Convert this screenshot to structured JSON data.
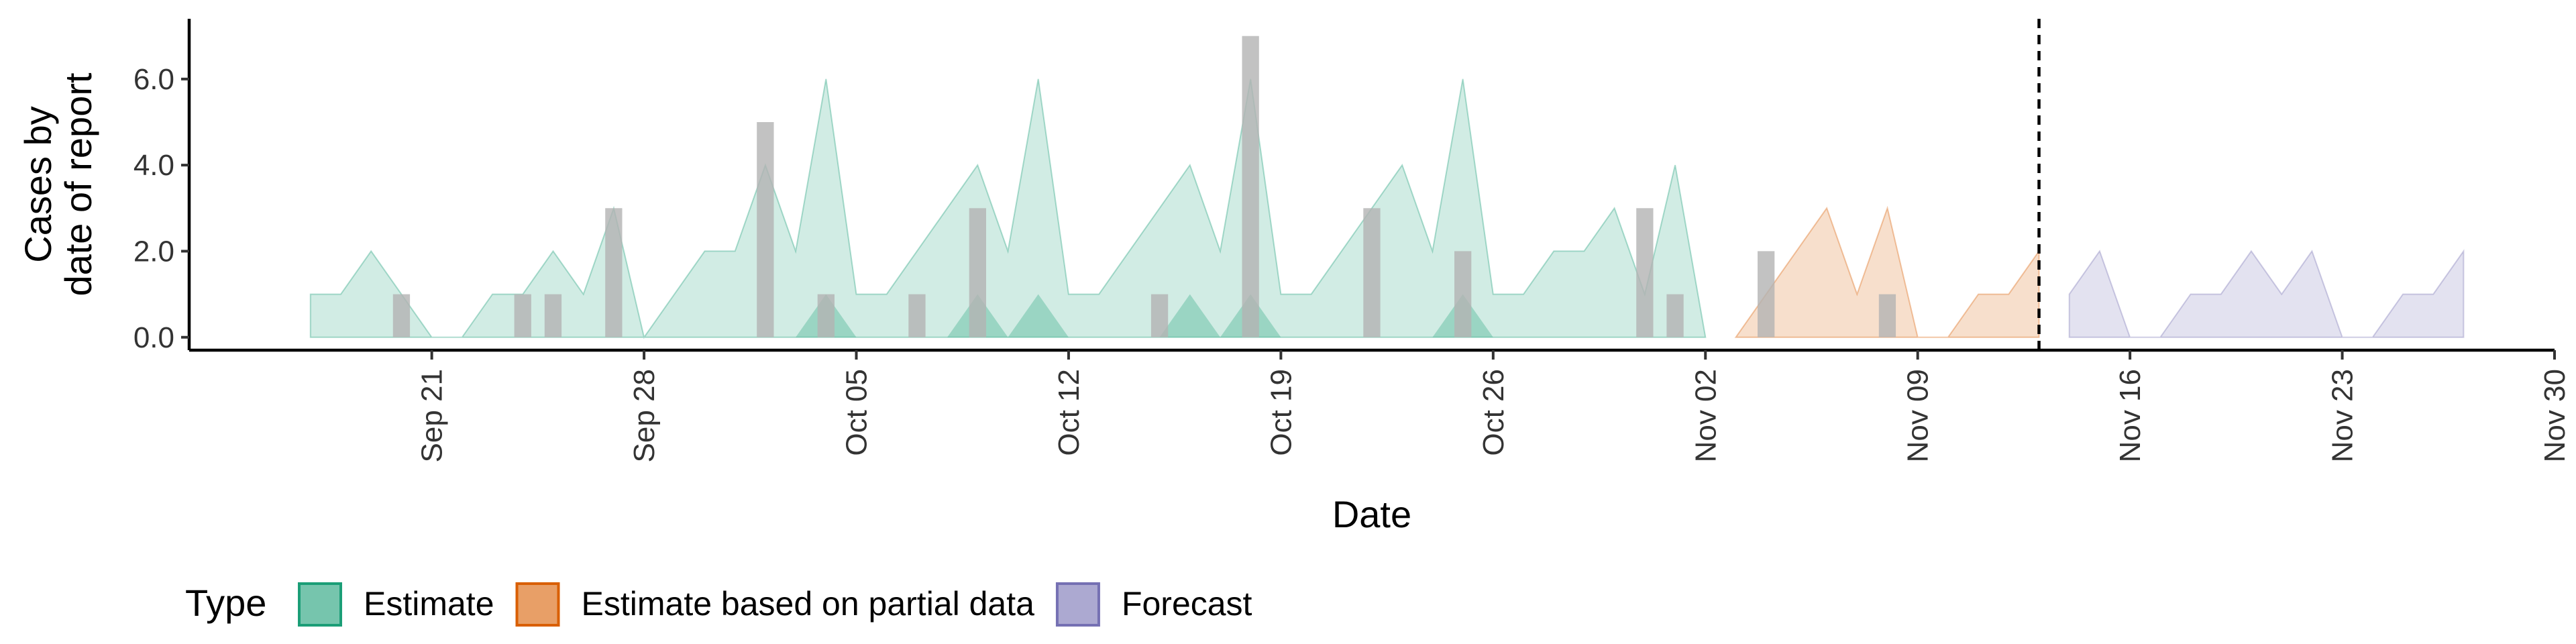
{
  "chart_data": {
    "type": "area",
    "xlabel": "Date",
    "ylabel": [
      "Cases by",
      "date of report"
    ],
    "x_range": [
      "2020-09-13",
      "2020-11-30"
    ],
    "y_range": [
      -0.3,
      7.4
    ],
    "y_ticks": [
      0,
      2,
      4,
      6
    ],
    "y_tick_labels": [
      "0.0",
      "2.0",
      "4.0",
      "6.0"
    ],
    "x_ticks": [
      "2020-09-21",
      "2020-09-28",
      "2020-10-05",
      "2020-10-12",
      "2020-10-19",
      "2020-10-26",
      "2020-11-02",
      "2020-11-09",
      "2020-11-16",
      "2020-11-23",
      "2020-11-30"
    ],
    "x_tick_labels": [
      "Sep 21",
      "Sep 28",
      "Oct 05",
      "Oct 12",
      "Oct 19",
      "Oct 26",
      "Nov 02",
      "Nov 09",
      "Nov 16",
      "Nov 23",
      "Nov 30"
    ],
    "forecast_line_date": "2020-11-13",
    "legend": {
      "title": "Type",
      "position": "bottom",
      "items": [
        {
          "label": "Estimate",
          "color": "#1b9e77"
        },
        {
          "label": "Estimate based on partial data",
          "color": "#d95f02"
        },
        {
          "label": "Forecast",
          "color": "#7570b3"
        }
      ]
    },
    "observed_cases": {
      "color": "#b3b3b3",
      "points": [
        [
          "2020-09-20",
          1
        ],
        [
          "2020-09-24",
          1
        ],
        [
          "2020-09-25",
          1
        ],
        [
          "2020-09-27",
          3
        ],
        [
          "2020-10-02",
          5
        ],
        [
          "2020-10-04",
          1
        ],
        [
          "2020-10-07",
          1
        ],
        [
          "2020-10-09",
          3
        ],
        [
          "2020-10-15",
          1
        ],
        [
          "2020-10-18",
          7
        ],
        [
          "2020-10-22",
          3
        ],
        [
          "2020-10-25",
          2
        ],
        [
          "2020-10-31",
          3
        ],
        [
          "2020-11-01",
          1
        ],
        [
          "2020-11-04",
          2
        ],
        [
          "2020-11-08",
          1
        ]
      ]
    },
    "series": [
      {
        "name": "Estimate",
        "color": "#1b9e77",
        "outer": [
          [
            "2020-09-17",
            1
          ],
          [
            "2020-09-18",
            1
          ],
          [
            "2020-09-19",
            2
          ],
          [
            "2020-09-20",
            1
          ],
          [
            "2020-09-21",
            0
          ],
          [
            "2020-09-22",
            0
          ],
          [
            "2020-09-23",
            1
          ],
          [
            "2020-09-24",
            1
          ],
          [
            "2020-09-25",
            2
          ],
          [
            "2020-09-26",
            1
          ],
          [
            "2020-09-27",
            3
          ],
          [
            "2020-09-28",
            0
          ],
          [
            "2020-09-29",
            1
          ],
          [
            "2020-09-30",
            2
          ],
          [
            "2020-10-01",
            2
          ],
          [
            "2020-10-02",
            4
          ],
          [
            "2020-10-03",
            2
          ],
          [
            "2020-10-04",
            6
          ],
          [
            "2020-10-05",
            1
          ],
          [
            "2020-10-06",
            1
          ],
          [
            "2020-10-07",
            2
          ],
          [
            "2020-10-08",
            3
          ],
          [
            "2020-10-09",
            4
          ],
          [
            "2020-10-10",
            2
          ],
          [
            "2020-10-11",
            6
          ],
          [
            "2020-10-12",
            1
          ],
          [
            "2020-10-13",
            1
          ],
          [
            "2020-10-14",
            2
          ],
          [
            "2020-10-15",
            3
          ],
          [
            "2020-10-16",
            4
          ],
          [
            "2020-10-17",
            2
          ],
          [
            "2020-10-18",
            6
          ],
          [
            "2020-10-19",
            1
          ],
          [
            "2020-10-20",
            1
          ],
          [
            "2020-10-21",
            2
          ],
          [
            "2020-10-22",
            3
          ],
          [
            "2020-10-23",
            4
          ],
          [
            "2020-10-24",
            2
          ],
          [
            "2020-10-25",
            6
          ],
          [
            "2020-10-26",
            1
          ],
          [
            "2020-10-27",
            1
          ],
          [
            "2020-10-28",
            2
          ],
          [
            "2020-10-29",
            2
          ],
          [
            "2020-10-30",
            3
          ],
          [
            "2020-10-31",
            1
          ],
          [
            "2020-11-01",
            4
          ],
          [
            "2020-11-02",
            0
          ]
        ],
        "inner": [
          [
            "2020-10-03",
            0
          ],
          [
            "2020-10-04",
            1
          ],
          [
            "2020-10-05",
            0
          ],
          [
            "2020-10-08",
            0
          ],
          [
            "2020-10-09",
            1
          ],
          [
            "2020-10-10",
            0
          ],
          [
            "2020-10-11",
            1
          ],
          [
            "2020-10-12",
            0
          ],
          [
            "2020-10-15",
            0
          ],
          [
            "2020-10-16",
            1
          ],
          [
            "2020-10-17",
            0
          ],
          [
            "2020-10-18",
            1
          ],
          [
            "2020-10-19",
            0
          ],
          [
            "2020-10-24",
            0
          ],
          [
            "2020-10-25",
            1
          ],
          [
            "2020-10-26",
            0
          ]
        ]
      },
      {
        "name": "Estimate based on partial data",
        "color": "#d95f02",
        "outer": [
          [
            "2020-11-03",
            0
          ],
          [
            "2020-11-04",
            1
          ],
          [
            "2020-11-05",
            2
          ],
          [
            "2020-11-06",
            3
          ],
          [
            "2020-11-07",
            1
          ],
          [
            "2020-11-08",
            3
          ],
          [
            "2020-11-09",
            0
          ],
          [
            "2020-11-10",
            0
          ],
          [
            "2020-11-11",
            1
          ],
          [
            "2020-11-12",
            1
          ],
          [
            "2020-11-13",
            2
          ]
        ]
      },
      {
        "name": "Forecast",
        "color": "#7570b3",
        "outer": [
          [
            "2020-11-14",
            1
          ],
          [
            "2020-11-15",
            2
          ],
          [
            "2020-11-16",
            0
          ],
          [
            "2020-11-17",
            0
          ],
          [
            "2020-11-18",
            1
          ],
          [
            "2020-11-19",
            1
          ],
          [
            "2020-11-20",
            2
          ],
          [
            "2020-11-21",
            1
          ],
          [
            "2020-11-22",
            2
          ],
          [
            "2020-11-23",
            0
          ],
          [
            "2020-11-24",
            0
          ],
          [
            "2020-11-25",
            1
          ],
          [
            "2020-11-26",
            1
          ],
          [
            "2020-11-27",
            2
          ]
        ]
      }
    ]
  }
}
